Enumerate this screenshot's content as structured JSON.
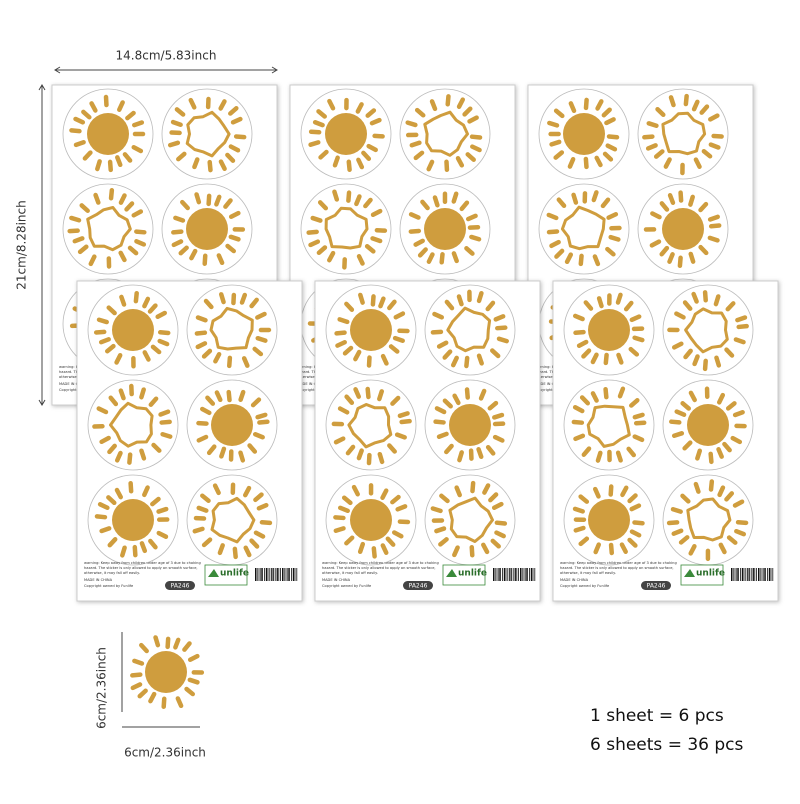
{
  "dimensions": {
    "sheet_width": "14.8cm/5.83inch",
    "sheet_height": "21cm/8.28inch",
    "sticker_height": "6cm/2.36inch",
    "sticker_width": "6cm/2.36inch"
  },
  "sheet": {
    "warning": [
      "warning: Keep away from children under age of 3 due to choking",
      "hazard. The sticker is only allowed to apply on smooth surface,",
      "otherwise, it may fall off easily."
    ],
    "made_in": "MADE IN CHINA",
    "copyright": "Copyright owned by Funlife",
    "brand": "unlife",
    "code": "PA246"
  },
  "quantity": {
    "line_1": "1 sheet = 6 pcs",
    "line_2": "6 sheets = 36 pcs"
  }
}
